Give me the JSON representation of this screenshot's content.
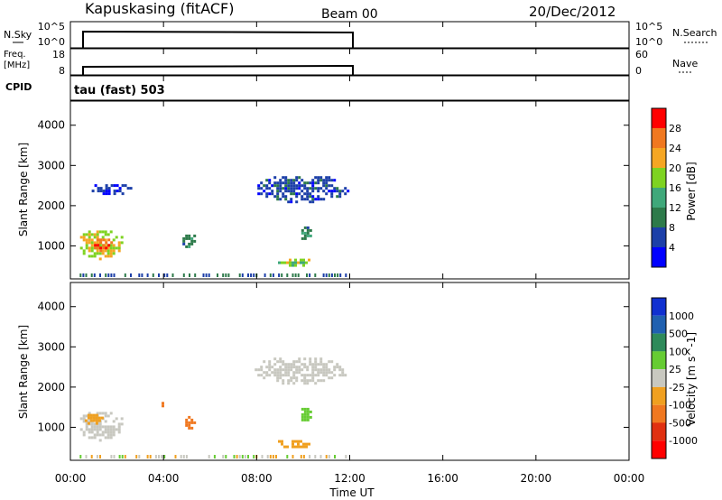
{
  "header": {
    "station": "Kapuskasing (fitACF)",
    "beam": "Beam 00",
    "date": "20/Dec/2012"
  },
  "noise_panel": {
    "left_label": "N.Sky",
    "right_label": "N.Search",
    "left_ticks": [
      "10^5",
      "10^0"
    ],
    "right_ticks": [
      "10^5",
      "10^0"
    ]
  },
  "freq_panel": {
    "left_label_line1": "Freq.",
    "left_label_line2": "[MHz]",
    "right_label": "Nave",
    "left_ticks": [
      "18",
      "8"
    ],
    "right_ticks": [
      "60",
      "0"
    ]
  },
  "cpid_panel": {
    "label": "CPID",
    "text": "tau (fast) 503"
  },
  "colors": {
    "power": [
      "#0000ff",
      "#1c3fa8",
      "#2d7a4a",
      "#3fa87a",
      "#7ed321",
      "#f5a623",
      "#f07820",
      "#ff0000"
    ],
    "velocity": [
      "#1030d0",
      "#2060b0",
      "#2e8a5a",
      "#66cc33",
      "#c8c8c0",
      "#f0a020",
      "#f07820",
      "#e03010",
      "#ff0000"
    ]
  },
  "chart_data": [
    {
      "type": "heatmap",
      "quantity": "power",
      "ylabel": "Slant Range [km]",
      "yticks": [
        "1000",
        "2000",
        "3000",
        "4000"
      ],
      "ylim": [
        180,
        4600
      ],
      "xlim": [
        0,
        24
      ],
      "colorbar_label": "Power [dB]",
      "colorbar_ticks": [
        "4",
        "8",
        "12",
        "16",
        "20",
        "24",
        "28"
      ],
      "colorbar_range": [
        0,
        32
      ],
      "blobs": [
        {
          "t0": 0.3,
          "t1": 2.3,
          "r0": 700,
          "r1": 1450,
          "value": 20
        },
        {
          "t0": 0.9,
          "t1": 1.8,
          "r0": 900,
          "r1": 1250,
          "value": 27
        },
        {
          "t0": 3.8,
          "t1": 4.1,
          "r0": 1500,
          "r1": 1700,
          "value": 12
        },
        {
          "t0": 4.7,
          "t1": 5.4,
          "r0": 1000,
          "r1": 1350,
          "value": 10
        },
        {
          "t0": 8.8,
          "t1": 10.3,
          "r0": 500,
          "r1": 750,
          "value": 18
        },
        {
          "t0": 9.8,
          "t1": 10.3,
          "r0": 1150,
          "r1": 1550,
          "value": 10
        },
        {
          "t0": 7.8,
          "t1": 11.9,
          "r0": 2100,
          "r1": 2800,
          "value": 6
        },
        {
          "t0": 0.8,
          "t1": 2.6,
          "r0": 2300,
          "r1": 2600,
          "value": 5
        }
      ]
    },
    {
      "type": "heatmap",
      "quantity": "velocity",
      "ylabel": "Slant Range [km]",
      "yticks": [
        "1000",
        "2000",
        "3000",
        "4000"
      ],
      "ylim": [
        180,
        4600
      ],
      "xlim": [
        0,
        24
      ],
      "xlabel": "Time UT",
      "xticks": [
        "00:00",
        "04:00",
        "08:00",
        "12:00",
        "16:00",
        "20:00",
        "00:00"
      ],
      "colorbar_label": "Velocity [m s^-1]",
      "colorbar_ticks": [
        "1000",
        "500",
        "100",
        "25",
        "-25",
        "-100",
        "-500",
        "-1000"
      ],
      "blobs": [
        {
          "t0": 0.3,
          "t1": 2.3,
          "r0": 700,
          "r1": 1450,
          "value": 0
        },
        {
          "t0": 0.5,
          "t1": 1.4,
          "r0": 1100,
          "r1": 1400,
          "value": -60
        },
        {
          "t0": 3.8,
          "t1": 4.1,
          "r0": 1500,
          "r1": 1700,
          "value": -300
        },
        {
          "t0": 4.7,
          "t1": 5.4,
          "r0": 1000,
          "r1": 1350,
          "value": -300
        },
        {
          "t0": 8.8,
          "t1": 10.3,
          "r0": 500,
          "r1": 750,
          "value": -60
        },
        {
          "t0": 9.8,
          "t1": 10.3,
          "r0": 1150,
          "r1": 1550,
          "value": 60
        },
        {
          "t0": 7.8,
          "t1": 11.9,
          "r0": 2100,
          "r1": 2800,
          "value": 0
        }
      ]
    }
  ]
}
